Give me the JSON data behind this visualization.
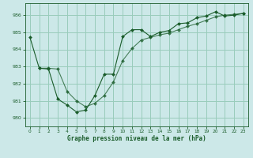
{
  "bg_color": "#cce8e8",
  "grid_color": "#99ccbb",
  "line_color": "#1a5c2a",
  "xlabel": "Graphe pression niveau de la mer (hPa)",
  "xlim": [
    -0.5,
    23.5
  ],
  "ylim": [
    979.5,
    986.7
  ],
  "yticks": [
    980,
    981,
    982,
    983,
    984,
    985,
    986
  ],
  "xticks": [
    0,
    1,
    2,
    3,
    4,
    5,
    6,
    7,
    8,
    9,
    10,
    11,
    12,
    13,
    14,
    15,
    16,
    17,
    18,
    19,
    20,
    21,
    22,
    23
  ],
  "series1_x": [
    0,
    1,
    2,
    3,
    4,
    5,
    6,
    7,
    8,
    9,
    10,
    11,
    12,
    13,
    14,
    15,
    16,
    17,
    18,
    19,
    20,
    21,
    22,
    23
  ],
  "series1_y": [
    984.7,
    982.9,
    982.85,
    981.1,
    980.75,
    980.35,
    980.45,
    981.3,
    982.55,
    982.55,
    984.75,
    985.15,
    985.15,
    984.75,
    985.0,
    985.1,
    985.5,
    985.55,
    985.85,
    985.95,
    986.2,
    985.95,
    986.0,
    986.1
  ],
  "series2_x": [
    1,
    2,
    3,
    4,
    5,
    6,
    7,
    8,
    9,
    10,
    11,
    12,
    13,
    14,
    15,
    16,
    17,
    18,
    19,
    20,
    21,
    22,
    23
  ],
  "series2_y": [
    982.9,
    982.9,
    982.85,
    981.55,
    981.0,
    980.65,
    980.85,
    981.3,
    982.1,
    983.35,
    984.05,
    984.55,
    984.7,
    984.85,
    984.95,
    985.15,
    985.35,
    985.5,
    985.7,
    985.9,
    986.0,
    986.05,
    986.1
  ],
  "marker": "D",
  "marker_size": 2.0
}
